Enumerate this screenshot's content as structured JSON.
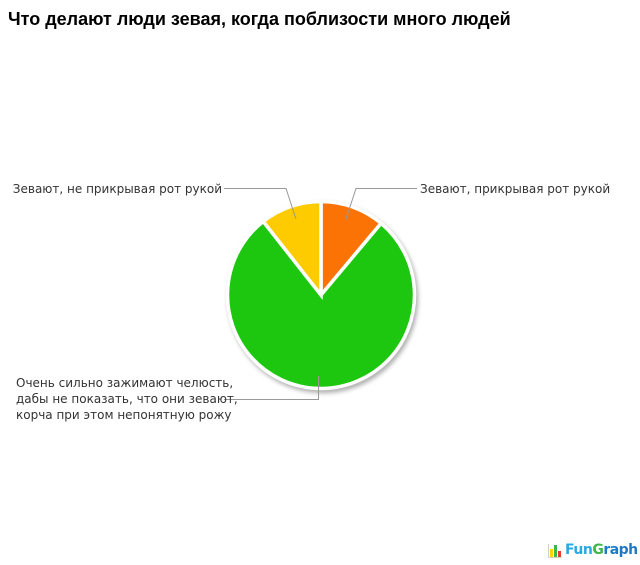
{
  "title": "Что делают люди зевая, когда поблизости много людей",
  "chart_data": {
    "type": "pie",
    "title": "Что делают люди зевая, когда поблизости много людей",
    "legend_position": "callout-labels",
    "start_angle_deg": 0,
    "direction": "clockwise",
    "separator_color": "#ffffff",
    "slices": [
      {
        "label": "Зевают, прикрывая рот рукой",
        "value": 11.1,
        "color": "#fb7305"
      },
      {
        "label": "Очень сильно зажимают челюсть, дабы не показать, что они зевают, корча при этом непонятную рожу",
        "value": 78.3,
        "color": "#1ec70f"
      },
      {
        "label": "Зевают, не прикрывая рот рукой",
        "value": 10.6,
        "color": "#fecb00"
      }
    ]
  },
  "labels": {
    "yellow": "Зевают, не прикрывая рот рукой",
    "orange": "Зевают, прикрывая рот рукой",
    "green_line1": "Очень сильно зажимают челюсть,",
    "green_line2": "дабы не показать, что они зевают,",
    "green_line3": "корча при этом непонятную рожу"
  },
  "leader_line_color": "#999999",
  "logo": {
    "name": "FunGraph",
    "parts": [
      {
        "text": "Fun",
        "color": "#2aa9e0"
      },
      {
        "text": "G",
        "color": "#3cb549"
      },
      {
        "text": "raph",
        "color": "#1e7ac4"
      }
    ],
    "icon_bar_colors": [
      "#ffd400",
      "#3cb549",
      "#e83b2e"
    ]
  }
}
